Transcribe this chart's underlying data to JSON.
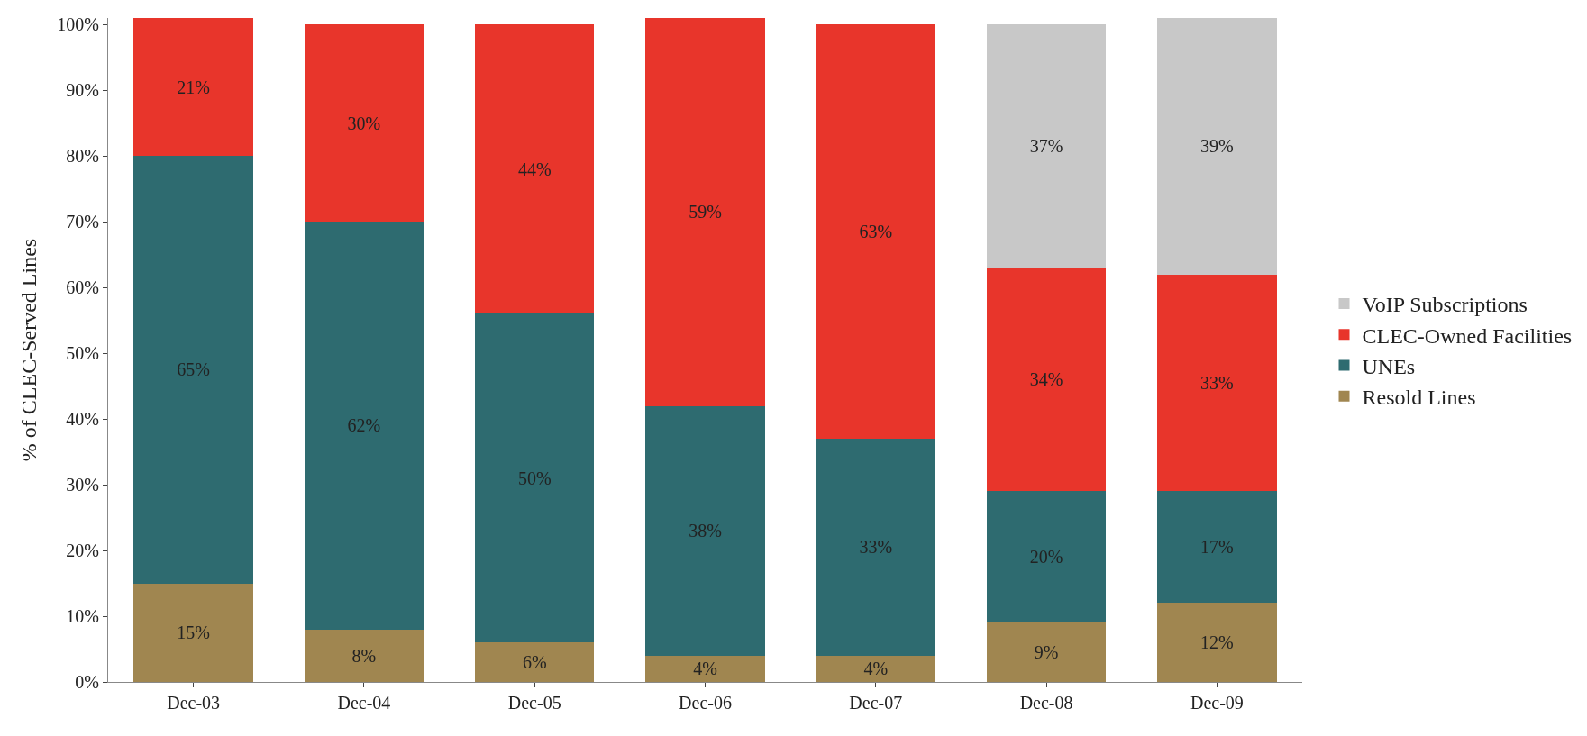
{
  "chart_data": {
    "type": "bar",
    "stacked": true,
    "ylabel": "% of CLEC-Served Lines",
    "categories": [
      "Dec-03",
      "Dec-04",
      "Dec-05",
      "Dec-06",
      "Dec-07",
      "Dec-08",
      "Dec-09"
    ],
    "series": [
      {
        "name": "Resold Lines",
        "color": "#a08650",
        "values": [
          15,
          8,
          6,
          4,
          4,
          9,
          12
        ],
        "value_labels": [
          "15%",
          "8%",
          "6%",
          "4%",
          "4%",
          "9%",
          "12%"
        ]
      },
      {
        "name": "UNEs",
        "color": "#2e6b70",
        "values": [
          65,
          62,
          50,
          38,
          33,
          20,
          17
        ],
        "value_labels": [
          "65%",
          "62%",
          "50%",
          "38%",
          "33%",
          "20%",
          "17%"
        ]
      },
      {
        "name": "CLEC-Owned Facilities",
        "color": "#e8352b",
        "values": [
          21,
          30,
          44,
          59,
          63,
          34,
          33
        ],
        "value_labels": [
          "21%",
          "30%",
          "44%",
          "59%",
          "63%",
          "34%",
          "33%"
        ]
      },
      {
        "name": "VoIP Subscriptions",
        "color": "#c8c8c8",
        "values": [
          null,
          null,
          null,
          null,
          null,
          37,
          39
        ],
        "value_labels": [
          null,
          null,
          null,
          null,
          null,
          "37%",
          "39%"
        ]
      }
    ],
    "ylim": [
      0,
      101
    ],
    "yticks": [
      {
        "value": 0,
        "label": "0%"
      },
      {
        "value": 10,
        "label": "10%"
      },
      {
        "value": 20,
        "label": "20%"
      },
      {
        "value": 30,
        "label": "30%"
      },
      {
        "value": 40,
        "label": "40%"
      },
      {
        "value": 50,
        "label": "50%"
      },
      {
        "value": 60,
        "label": "60%"
      },
      {
        "value": 70,
        "label": "70%"
      },
      {
        "value": 80,
        "label": "80%"
      },
      {
        "value": 90,
        "label": "90%"
      },
      {
        "value": 100,
        "label": "100%"
      }
    ],
    "grid": false,
    "legend": "right"
  }
}
